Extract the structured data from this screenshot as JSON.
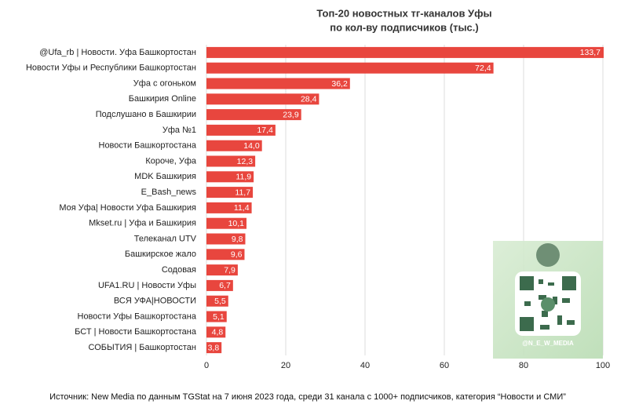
{
  "chart_data": {
    "type": "bar",
    "orientation": "horizontal",
    "title": [
      "Топ-20 новостных тг-каналов Уфы",
      "по кол-ву подписчиков (тыс.)"
    ],
    "categories": [
      "@Ufa_rb | Новости. Уфа Башкортостан",
      "Новости Уфы и Республики Башкортостан",
      "Уфа с огоньком",
      "Башкирия Online",
      "Подслушано в Башкирии",
      "Уфа №1",
      "Новости Башкортостана",
      "Короче, Уфа",
      "MDK Башкирия",
      "E_Bash_news",
      "Моя Уфа| Новости Уфа Башкирия",
      "Mkset.ru | Уфа и Башкирия",
      "Телеканал UTV",
      "Башкирское жало",
      "Содовая",
      "UFA1.RU | Новости Уфы",
      "ВСЯ УФА|НОВОСТИ",
      "Новости Уфы Башкортостана",
      "БСТ | Новости Башкортостана",
      "СОБЫТИЯ | Башкортостан"
    ],
    "values": [
      133.7,
      72.4,
      36.2,
      28.4,
      23.9,
      17.4,
      14.0,
      12.3,
      11.9,
      11.7,
      11.4,
      10.1,
      9.8,
      9.6,
      7.9,
      6.7,
      5.5,
      5.1,
      4.8,
      3.8
    ],
    "value_labels": [
      "133,7",
      "72,4",
      "36,2",
      "28,4",
      "23,9",
      "17,4",
      "14,0",
      "12,3",
      "11,9",
      "11,7",
      "11,4",
      "10,1",
      "9,8",
      "9,6",
      "7,9",
      "6,7",
      "5,5",
      "5,1",
      "4,8",
      "3,8"
    ],
    "color": "#e8463e",
    "xlim": [
      0,
      100
    ],
    "xticks": [
      0,
      20,
      40,
      60,
      80,
      100
    ],
    "grid": true,
    "watermark": "@N_E_W_MEDIA",
    "source": "Источник: New Media по данным TGStat на 7 июня 2023 года, среди 31 канала с 1000+ подписчиков, категория “Новости и СМИ”"
  }
}
